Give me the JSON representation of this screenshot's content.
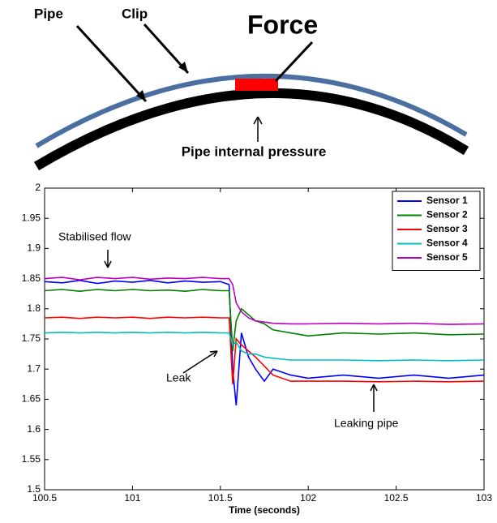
{
  "diagram": {
    "pipe_label": "Pipe",
    "clip_label": "Clip",
    "force_label": "Force",
    "pressure_label": "Pipe internal pressure"
  },
  "chart_data": {
    "type": "line",
    "x_label": "Time (seconds)",
    "annotations": [
      "Stabilised flow",
      "Leak",
      "Leaking pipe"
    ],
    "x": [
      100.5,
      100.6,
      100.7,
      100.8,
      100.9,
      101,
      101.1,
      101.2,
      101.3,
      101.4,
      101.5,
      101.55,
      101.57,
      101.59,
      101.62,
      101.66,
      101.7,
      101.75,
      101.8,
      101.9,
      102,
      102.2,
      102.4,
      102.6,
      102.8,
      103
    ],
    "series": [
      {
        "name": "Sensor 1",
        "color": "#0000ff",
        "values": [
          1.845,
          1.843,
          1.847,
          1.842,
          1.846,
          1.844,
          1.847,
          1.843,
          1.846,
          1.844,
          1.845,
          1.84,
          1.7,
          1.64,
          1.76,
          1.72,
          1.7,
          1.68,
          1.7,
          1.69,
          1.685,
          1.69,
          1.685,
          1.69,
          1.685,
          1.69
        ]
      },
      {
        "name": "Sensor 2",
        "color": "#008000",
        "values": [
          1.83,
          1.832,
          1.829,
          1.832,
          1.83,
          1.832,
          1.83,
          1.831,
          1.829,
          1.832,
          1.83,
          1.83,
          1.73,
          1.78,
          1.8,
          1.79,
          1.78,
          1.775,
          1.765,
          1.76,
          1.755,
          1.76,
          1.758,
          1.76,
          1.757,
          1.758
        ]
      },
      {
        "name": "Sensor 3",
        "color": "#ff0000",
        "values": [
          1.785,
          1.786,
          1.784,
          1.786,
          1.785,
          1.786,
          1.784,
          1.786,
          1.785,
          1.786,
          1.785,
          1.785,
          1.675,
          1.75,
          1.74,
          1.73,
          1.72,
          1.705,
          1.69,
          1.68,
          1.68,
          1.68,
          1.679,
          1.68,
          1.679,
          1.68
        ]
      },
      {
        "name": "Sensor 4",
        "color": "#00bfbf",
        "values": [
          1.76,
          1.761,
          1.76,
          1.761,
          1.76,
          1.761,
          1.76,
          1.761,
          1.76,
          1.761,
          1.76,
          1.76,
          1.74,
          1.745,
          1.73,
          1.725,
          1.725,
          1.72,
          1.718,
          1.715,
          1.715,
          1.715,
          1.714,
          1.715,
          1.714,
          1.715
        ]
      },
      {
        "name": "Sensor 5",
        "color": "#bf00bf",
        "values": [
          1.85,
          1.852,
          1.848,
          1.852,
          1.85,
          1.852,
          1.849,
          1.851,
          1.85,
          1.852,
          1.85,
          1.85,
          1.84,
          1.81,
          1.795,
          1.785,
          1.78,
          1.778,
          1.776,
          1.775,
          1.775,
          1.776,
          1.775,
          1.776,
          1.774,
          1.775
        ]
      }
    ],
    "xlim": [
      100.5,
      103
    ],
    "xticks": [
      100.5,
      101,
      101.5,
      102,
      102.5,
      103
    ],
    "ylim": [
      1.5,
      2
    ],
    "yticks": [
      1.5,
      1.55,
      1.6,
      1.65,
      1.7,
      1.75,
      1.8,
      1.85,
      1.9,
      1.95,
      2
    ],
    "legend": "upper right"
  }
}
